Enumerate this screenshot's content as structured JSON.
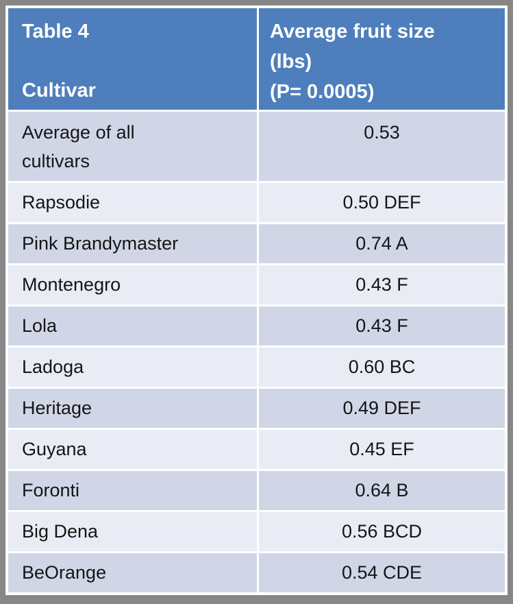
{
  "colors": {
    "canvas_bg": "#878787",
    "header_bg": "#4E7FBC",
    "header_text": "#FFFFFF",
    "row_dark": "#D1D6E7",
    "row_light": "#E9ECF4",
    "border": "#FFFFFF",
    "body_text": "#151515"
  },
  "table": {
    "header": {
      "col1": {
        "line1": "Table 4",
        "line2": "Cultivar"
      },
      "col2": {
        "line1": "Average fruit size",
        "line2": "(lbs)",
        "line3": "(P= 0.0005)"
      }
    },
    "rows": [
      {
        "cultivar": "BeOrange",
        "value": "0.54 CDE"
      },
      {
        "cultivar": "Big Dena",
        "value": "0.56 BCD"
      },
      {
        "cultivar": "Foronti",
        "value": "0.64 B"
      },
      {
        "cultivar": "Guyana",
        "value": "0.45 EF"
      },
      {
        "cultivar": "Heritage",
        "value": "0.49 DEF"
      },
      {
        "cultivar": "Ladoga",
        "value": "0.60 BC"
      },
      {
        "cultivar": "Lola",
        "value": "0.43 F"
      },
      {
        "cultivar": "Montenegro",
        "value": "0.43 F"
      },
      {
        "cultivar": "Pink Brandymaster",
        "value": "0.74 A"
      },
      {
        "cultivar": "Rapsodie",
        "value": "0.50 DEF"
      },
      {
        "cultivar": "Average of all cultivars",
        "value": "0.53"
      }
    ]
  },
  "chart_data": {
    "type": "table",
    "title": "Table 4",
    "columns": [
      "Cultivar",
      "Average fruit size (lbs) (P= 0.0005)"
    ],
    "p_value": 0.0005,
    "rows": [
      [
        "BeOrange",
        "0.54 CDE"
      ],
      [
        "Big Dena",
        "0.56 BCD"
      ],
      [
        "Foronti",
        "0.64 B"
      ],
      [
        "Guyana",
        "0.45 EF"
      ],
      [
        "Heritage",
        "0.49 DEF"
      ],
      [
        "Ladoga",
        "0.60 BC"
      ],
      [
        "Lola",
        "0.43 F"
      ],
      [
        "Montenegro",
        "0.43 F"
      ],
      [
        "Pink Brandymaster",
        "0.74 A"
      ],
      [
        "Rapsodie",
        "0.50 DEF"
      ],
      [
        "Average of all cultivars",
        "0.53"
      ]
    ],
    "values_numeric": [
      0.54,
      0.56,
      0.64,
      0.45,
      0.49,
      0.6,
      0.43,
      0.43,
      0.74,
      0.5,
      0.53
    ],
    "significance_groups": [
      "CDE",
      "BCD",
      "B",
      "EF",
      "DEF",
      "BC",
      "F",
      "F",
      "A",
      "DEF",
      ""
    ]
  }
}
